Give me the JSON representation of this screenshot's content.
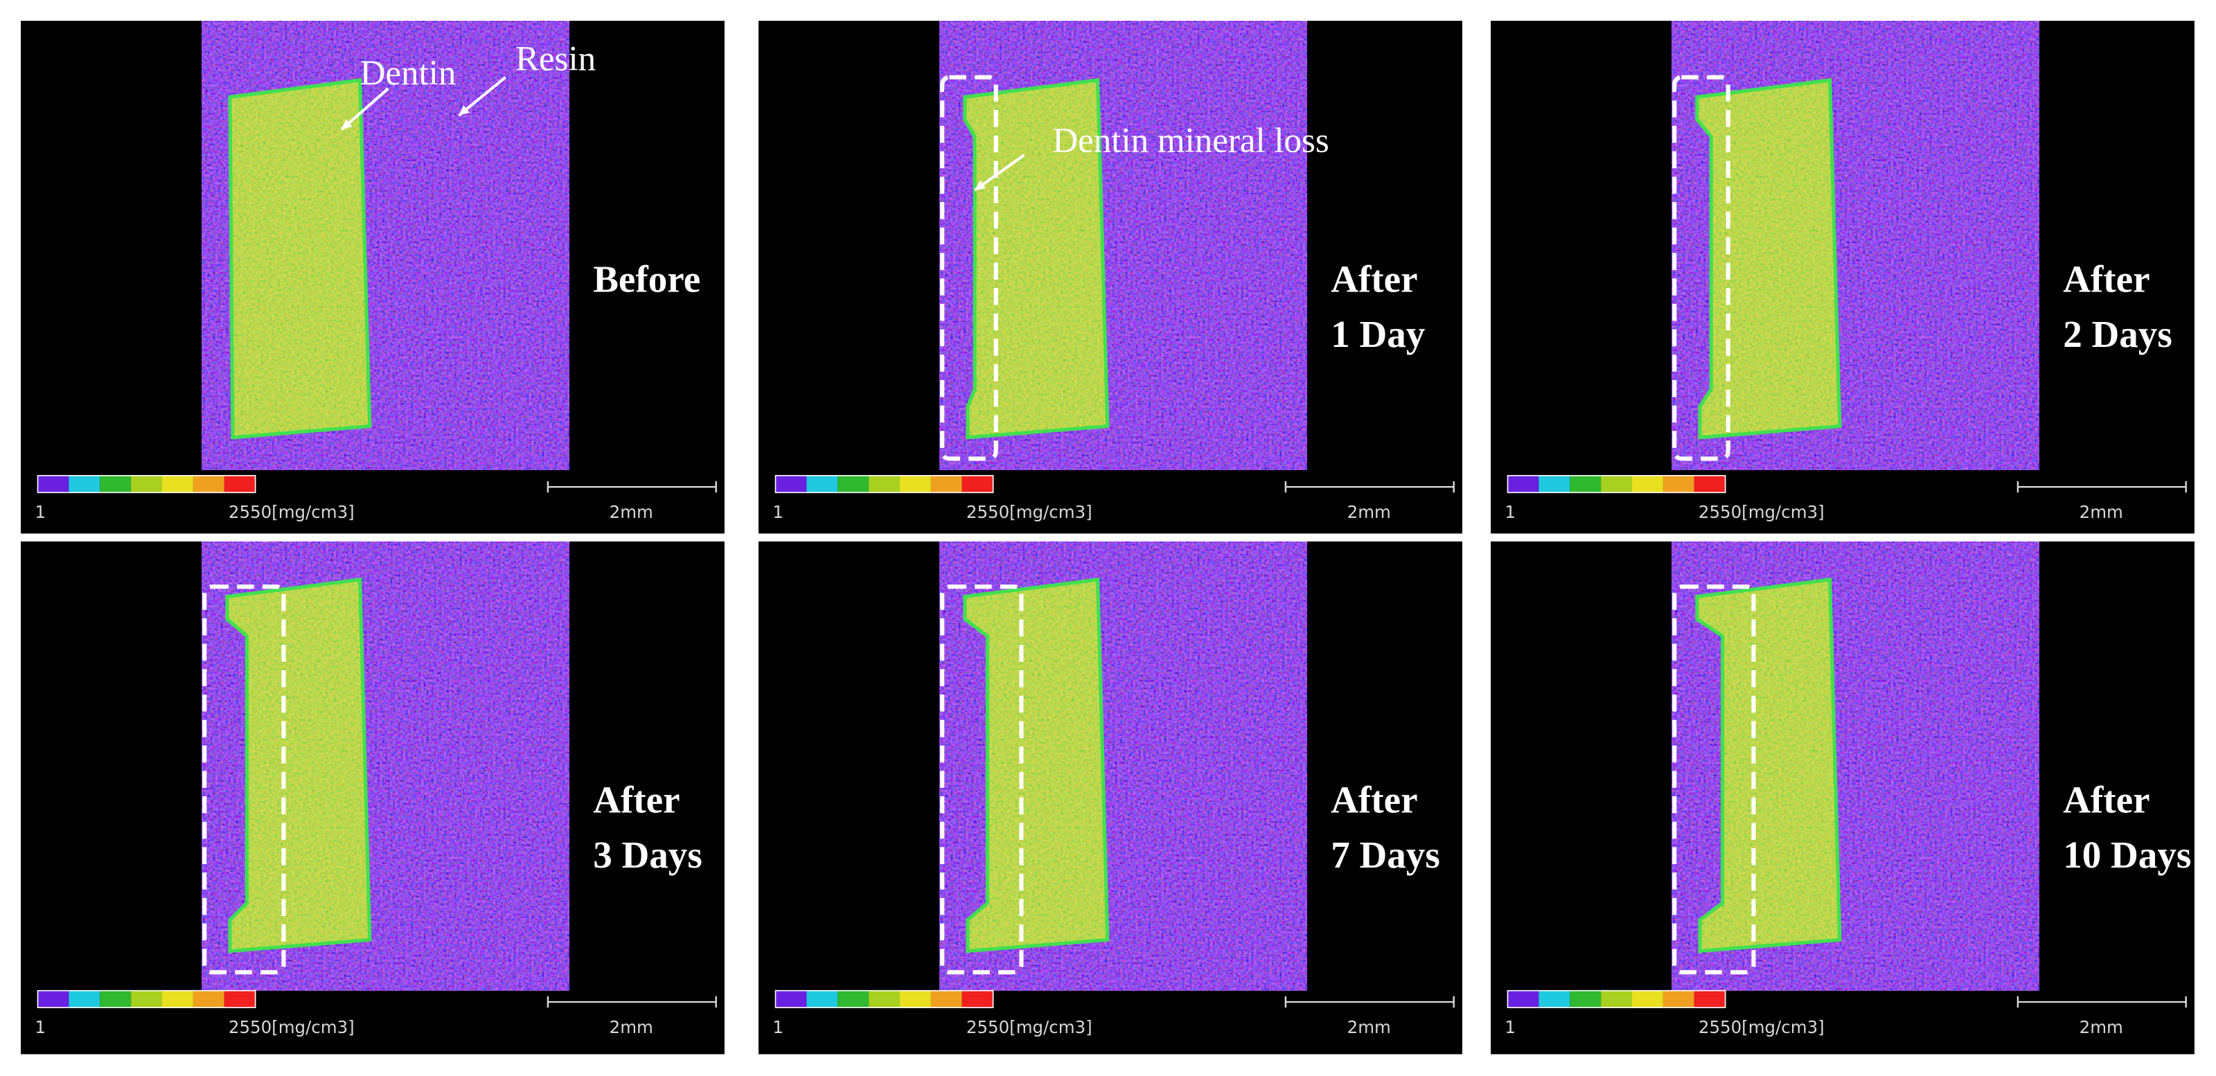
{
  "panels": [
    {
      "label_lines": [
        "Before"
      ],
      "colorbar_min": "1",
      "colorbar_max": "2550[mg/cm3]",
      "scale_bar": "2mm",
      "annotations": [
        "Dentin",
        "Resin"
      ]
    },
    {
      "label_lines": [
        "After",
        "1 Day"
      ],
      "colorbar_min": "1",
      "colorbar_max": "2550[mg/cm3]",
      "scale_bar": "2mm",
      "annotations": [
        "Dentin mineral loss"
      ]
    },
    {
      "label_lines": [
        "After",
        "2 Days"
      ],
      "colorbar_min": "1",
      "colorbar_max": "2550[mg/cm3]",
      "scale_bar": "2mm",
      "annotations": []
    },
    {
      "label_lines": [
        "After",
        "3 Days"
      ],
      "colorbar_min": "1",
      "colorbar_max": "2550[mg/cm3]",
      "scale_bar": "2mm",
      "annotations": []
    },
    {
      "label_lines": [
        "After",
        "7 Days"
      ],
      "colorbar_min": "1",
      "colorbar_max": "2550[mg/cm3]",
      "scale_bar": "2mm",
      "annotations": []
    },
    {
      "label_lines": [
        "After",
        "10 Days"
      ],
      "colorbar_min": "1",
      "colorbar_max": "2550[mg/cm3]",
      "scale_bar": "2mm",
      "annotations": []
    }
  ]
}
